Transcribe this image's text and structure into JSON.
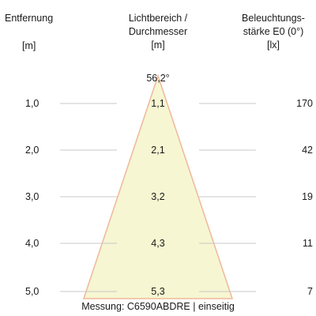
{
  "headers": {
    "distance": [
      "Entfernung",
      "[m]"
    ],
    "area": [
      "Lichtbereich /",
      "Durchmesser",
      "[m]"
    ],
    "illuminance": [
      "Beleuchtungs-",
      "stärke E0 (0°)",
      "[lx]"
    ]
  },
  "beam_angle": "56,2°",
  "rows": [
    {
      "distance": "1,0",
      "diameter": "1,1",
      "lux": "170"
    },
    {
      "distance": "2,0",
      "diameter": "2,1",
      "lux": "42"
    },
    {
      "distance": "3,0",
      "diameter": "3,2",
      "lux": "19"
    },
    {
      "distance": "4,0",
      "diameter": "4,3",
      "lux": "11"
    },
    {
      "distance": "5,0",
      "diameter": "5,3",
      "lux": "7"
    }
  ],
  "caption": "Messung: C6590ABDRE | einseitig",
  "colors": {
    "cone_fill": "#f6f6d2",
    "cone_stroke": "#f0b89a",
    "guide_line": "#c8c8c8"
  }
}
